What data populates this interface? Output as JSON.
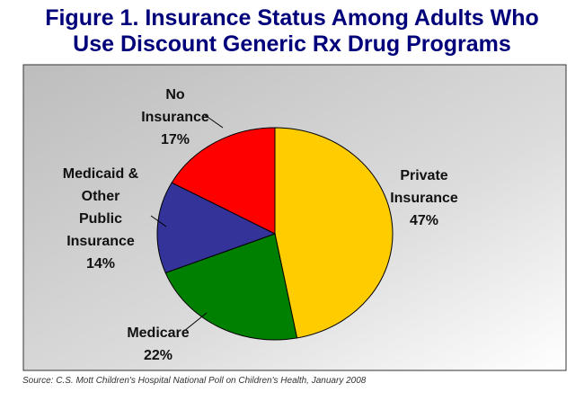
{
  "chart_data": {
    "type": "pie",
    "title_lines": [
      "Figure 1. Insurance Status Among Adults Who",
      "Use Discount Generic Rx Drug Programs"
    ],
    "start_angle": "12 o'clock, clockwise",
    "slices": [
      {
        "label_lines": [
          "Private",
          "Insurance"
        ],
        "value": 47,
        "value_label": "47%",
        "color": "#ffcc00"
      },
      {
        "label_lines": [
          "Medicare"
        ],
        "value": 22,
        "value_label": "22%",
        "color": "#008000"
      },
      {
        "label_lines": [
          "Medicaid &",
          "Other",
          "Public",
          "Insurance"
        ],
        "value": 14,
        "value_label": "14%",
        "color": "#333399"
      },
      {
        "label_lines": [
          "No",
          "Insurance"
        ],
        "value": 17,
        "value_label": "17%",
        "color": "#ff0000"
      }
    ],
    "legend": "none",
    "background": "gray gradient"
  },
  "source": "Source: C.S. Mott Children's Hospital National Poll on Children's Health, January 2008"
}
